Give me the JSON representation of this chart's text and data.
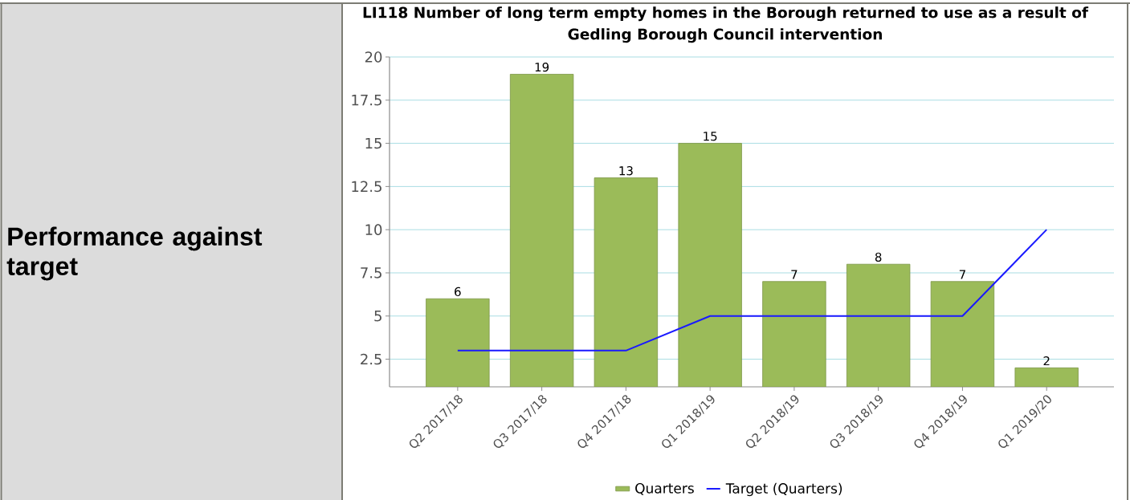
{
  "chart_data": {
    "type": "bar",
    "title": "LI118 Number of long term empty homes in the Borough returned to use as a result of Gedling Borough Council intervention",
    "categories": [
      "Q2 2017/18",
      "Q3 2017/18",
      "Q4 2017/18",
      "Q1 2018/19",
      "Q2 2018/19",
      "Q3 2018/19",
      "Q4 2018/19",
      "Q1 2019/20"
    ],
    "series": [
      {
        "name": "Quarters",
        "color": "#9bbb59",
        "values": [
          6,
          19,
          13,
          15,
          7,
          8,
          7,
          2
        ],
        "value_labels": [
          "6",
          "19",
          "13",
          "15",
          "7",
          "8",
          "7",
          "2"
        ]
      },
      {
        "name": "Target (Quarters)",
        "type": "line",
        "color": "#1a1aff",
        "values": [
          3,
          3,
          3,
          5,
          5,
          5,
          5,
          10
        ]
      }
    ],
    "ylim": [
      0.9,
      20
    ],
    "yticks": [
      2.5,
      5,
      7.5,
      10,
      12.5,
      15,
      17.5,
      20
    ],
    "grid": "y",
    "legend": "bottom",
    "annotations": [
      "Performance against target"
    ]
  }
}
